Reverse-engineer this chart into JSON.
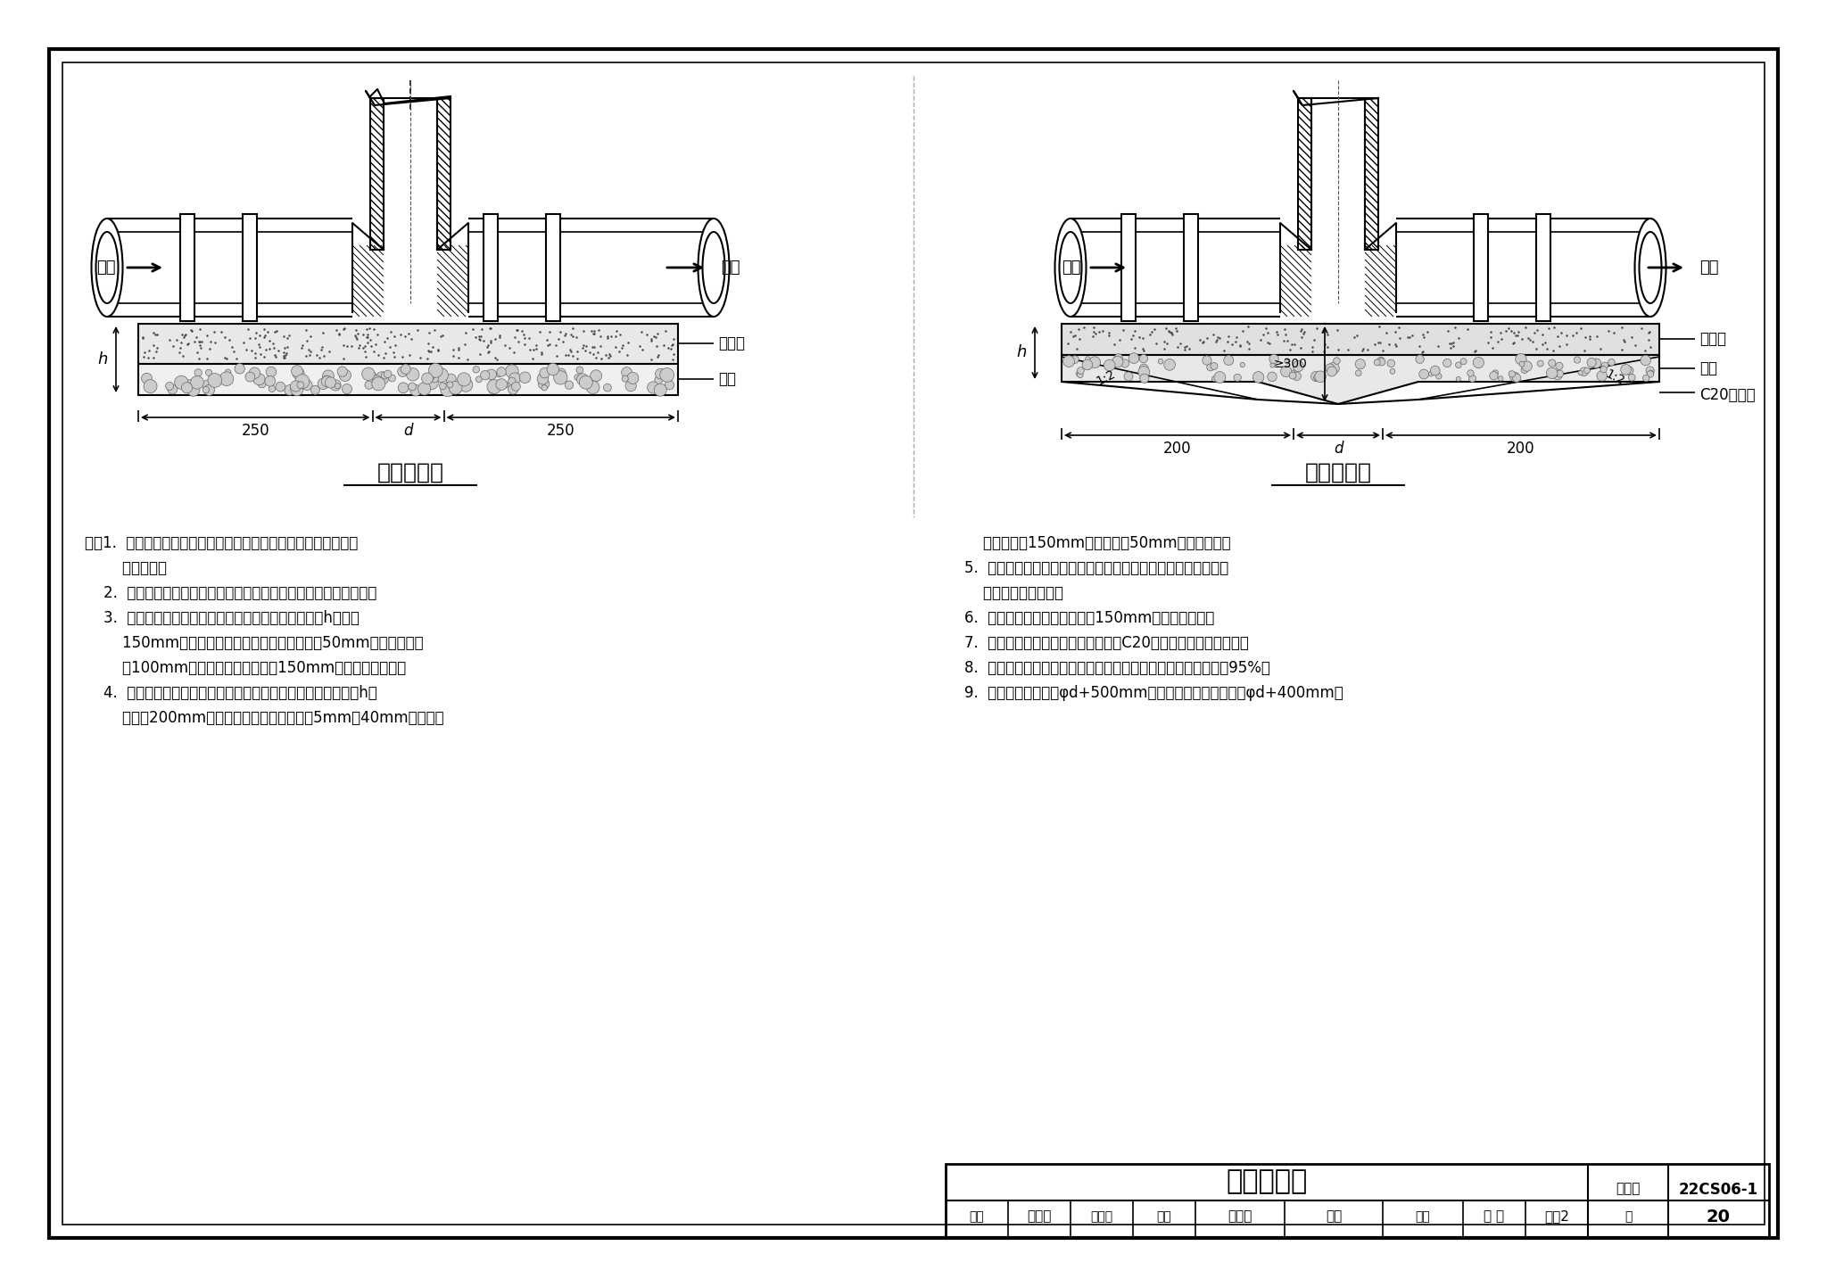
{
  "title": "检查井基础",
  "atlas_number": "22CS06-1",
  "page": "20",
  "bg_color": "#ffffff",
  "border_color": "#000000",
  "left_diagram_title": "检查井基础",
  "right_diagram_title": "沉泥井基础",
  "notes": [
    "注：1.  检查井基础应符合现行国家相关标准和本图集编制说明中的",
    "        相关规定。",
    "    2.  检查井基础采用中粗砂、砾石垫层基础，且应经结构专业核实。",
    "    3.  对于一般土质，应在井底原状土地基上铺设总厚度h不小于",
    "        150mm的基础层，基础层可采用下层不小于50mm的砾石，上层",
    "        为100mm的中粗砂，或直接采用150mm厚的中粗砂基础。",
    "    4.  当地下水位高于坑底时，应用砂、砾石置换，其基础总厚度h不",
    "        应小于200mm，基础层可采用下层为粒径5mm～40mm的砾石，"
  ],
  "notes_right": [
    "        厚度不小于150mm，上层宜为50mm厚的中粗砂。",
    "    5.  对于软土土质，必须先对地基加固处理，达到规定的地基承载",
    "        力后再铺设基础层。",
    "    6.  对于岩石地基应采用不小于150mm的中粗砂基础。",
    "    7.  市政检查井的基础层应采用不低于C20的现浇混凝土浇捣密实。",
    "    8.  砂石垫层的厚度不应小于管道垫层的厚度，压实系数不宜小于95%。",
    "    9.  检查井平面尺寸为φd+500mm；沉泥井基础平面尺寸为φd+400mm。"
  ],
  "footer_items": [
    {
      "label": "审核",
      "value": "张维汇"
    },
    {
      "label": "协调汇",
      "value": ""
    },
    {
      "label": "校对",
      "value": "韩振林"
    },
    {
      "label": "签字",
      "value": ""
    },
    {
      "label": "设计",
      "value": "李 伟"
    },
    {
      "label": "签字2",
      "value": ""
    },
    {
      "label": "页",
      "value": "20"
    }
  ]
}
